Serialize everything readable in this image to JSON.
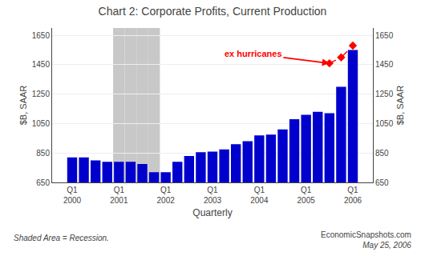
{
  "chart_data": {
    "type": "bar",
    "title": "Chart 2: Corporate Profits, Current Production",
    "categories": [
      "Q1\n2000",
      null,
      null,
      null,
      "Q1\n2001",
      null,
      null,
      null,
      "Q1\n2002",
      null,
      null,
      null,
      "Q1\n2003",
      null,
      null,
      null,
      "Q1\n2004",
      null,
      null,
      null,
      "Q1\n2005",
      null,
      null,
      null,
      "Q1\n2006"
    ],
    "series": [
      {
        "color": "#0000CC",
        "values": [
          820,
          820,
          800,
          790,
          790,
          790,
          775,
          720,
          720,
          790,
          830,
          855,
          860,
          875,
          910,
          930,
          970,
          975,
          1010,
          1080,
          1110,
          1130,
          1120,
          1300,
          1550
        ]
      },
      {
        "type": "line",
        "color": "red",
        "marker": "diamond",
        "line_style": "dashed",
        "values": [
          null,
          null,
          null,
          null,
          null,
          null,
          null,
          null,
          null,
          null,
          null,
          null,
          null,
          null,
          null,
          null,
          null,
          null,
          null,
          null,
          null,
          null,
          1460,
          1500,
          1580
        ]
      }
    ],
    "recession": [
      false,
      false,
      false,
      false,
      true,
      true,
      true,
      true,
      false,
      false,
      false,
      false,
      false,
      false,
      false,
      false,
      false,
      false,
      false,
      false,
      false,
      false,
      false,
      false,
      false
    ],
    "xlabel": "Quarterly",
    "ylabel": "$B, SAAR",
    "y2label": "$B, SAAR",
    "ylim": [
      650,
      1700
    ],
    "yticks": [
      650,
      850,
      1050,
      1250,
      1450,
      1650
    ],
    "y2lim": [
      650,
      1700
    ],
    "y2ticks": [
      650,
      850,
      1050,
      1250,
      1450,
      1650
    ],
    "grid": true,
    "annotation": "ex hurricanes",
    "footnote_left": "Shaded Area = Recession.",
    "footnote_right": [
      "EconomicSnapshots.com",
      "May 25, 2006"
    ]
  }
}
